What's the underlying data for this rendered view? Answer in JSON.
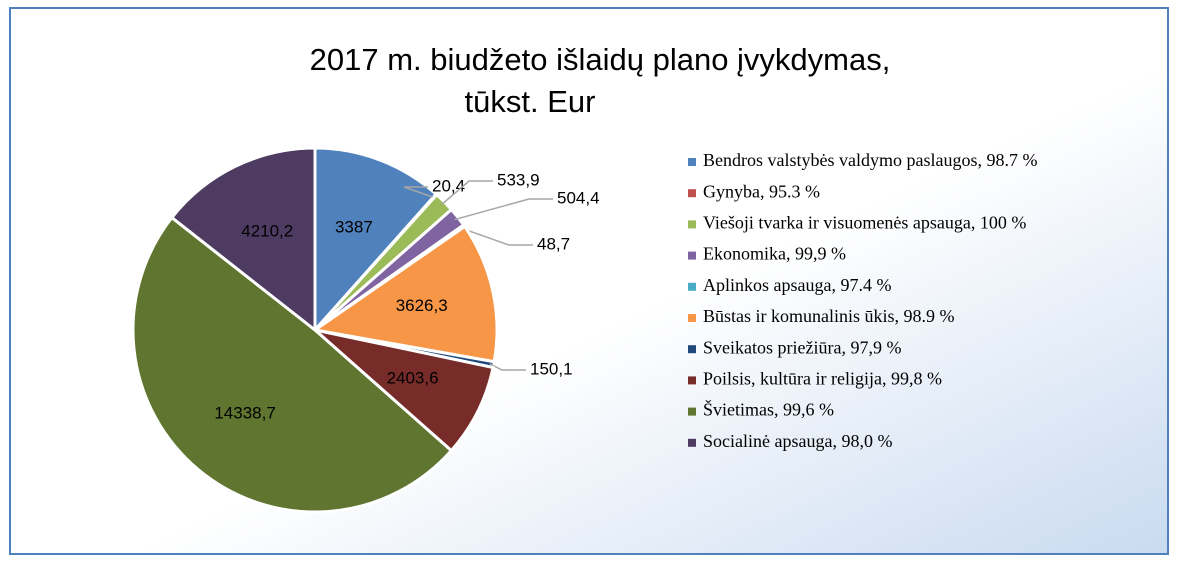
{
  "chart_data": {
    "type": "pie",
    "title": [
      "2017 m. biudžeto išlaidų plano įvykdymas,",
      "tūkst. Eur"
    ],
    "series": [
      {
        "name": "Bendros valstybės valdymo paslaugos, 98.7 %",
        "color": "#4f81bd",
        "values": [
          3387
        ],
        "value_labels": [
          "3387"
        ]
      },
      {
        "name": "Gynyba, 95.3 %",
        "color": "#c0504d",
        "values": [
          20.4
        ],
        "value_labels": [
          "20,4"
        ]
      },
      {
        "name": "Viešoji tvarka ir visuomenės apsauga, 100 %",
        "color": "#9bbb59",
        "values": [
          533.9
        ],
        "value_labels": [
          "533,9"
        ]
      },
      {
        "name": "Ekonomika, 99,9 %",
        "color": "#8064a2",
        "values": [
          504.4
        ],
        "value_labels": [
          "504,4"
        ]
      },
      {
        "name": "Aplinkos apsauga, 97.4 %",
        "color": "#4bacc6",
        "values": [
          48.7
        ],
        "value_labels": [
          "48,7"
        ]
      },
      {
        "name": "Būstas ir komunalinis ūkis, 98.9 %",
        "color": "#f79646",
        "values": [
          3626.3
        ],
        "value_labels": [
          "3626,3"
        ]
      },
      {
        "name": "Sveikatos priežiūra, 97,9 %",
        "color": "#1f497d",
        "values": [
          150.1
        ],
        "value_labels": [
          "150,1"
        ]
      },
      {
        "name": "Poilsis, kultūra ir religija, 99,8 %",
        "color": "#772c2a",
        "values": [
          2403.6
        ],
        "value_labels": [
          "2403,6"
        ]
      },
      {
        "name": "Švietimas, 99,6 %",
        "color": "#5f7530",
        "values": [
          14338.7
        ],
        "value_labels": [
          "14338,7"
        ]
      },
      {
        "name": "Socialinė apsauga, 98,0  %",
        "color": "#4d3b62",
        "values": [
          4210.2
        ],
        "value_labels": [
          "4210,2"
        ]
      }
    ]
  }
}
